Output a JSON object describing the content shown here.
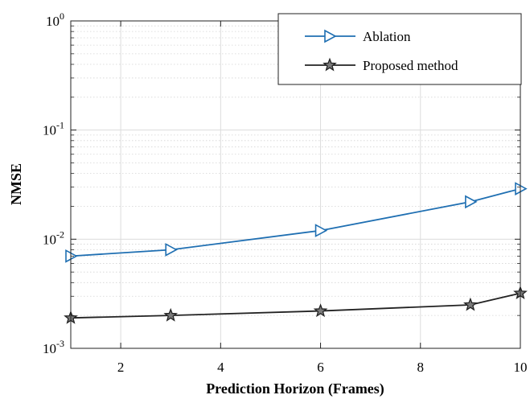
{
  "chart_data": {
    "type": "line",
    "title": "",
    "xlabel": "Prediction Horizon (Frames)",
    "ylabel": "NMSE",
    "xlim": [
      1,
      10
    ],
    "ylim": [
      0.001,
      1
    ],
    "yscale": "log",
    "grid": true,
    "legend_placement": "top-right",
    "x_ticks": [
      {
        "value": 2,
        "label": "2"
      },
      {
        "value": 4,
        "label": "4"
      },
      {
        "value": 6,
        "label": "6"
      },
      {
        "value": 8,
        "label": "8"
      },
      {
        "value": 10,
        "label": "10"
      }
    ],
    "y_ticks": [
      {
        "value": 1,
        "base": "10",
        "exp": "0"
      },
      {
        "value": 0.1,
        "base": "10",
        "exp": "-1"
      },
      {
        "value": 0.01,
        "base": "10",
        "exp": "-2"
      },
      {
        "value": 0.001,
        "base": "10",
        "exp": "-3"
      }
    ],
    "series": [
      {
        "name": "Ablation",
        "color": "#1f6fb2",
        "marker": "triangle-right",
        "x": [
          1,
          3,
          6,
          9,
          10
        ],
        "y": [
          0.007,
          0.008,
          0.012,
          0.022,
          0.029
        ]
      },
      {
        "name": "Proposed method",
        "color": "#222222",
        "marker": "star",
        "x": [
          1,
          3,
          6,
          9,
          10
        ],
        "y": [
          0.0019,
          0.002,
          0.0022,
          0.0025,
          0.0032
        ]
      }
    ]
  }
}
